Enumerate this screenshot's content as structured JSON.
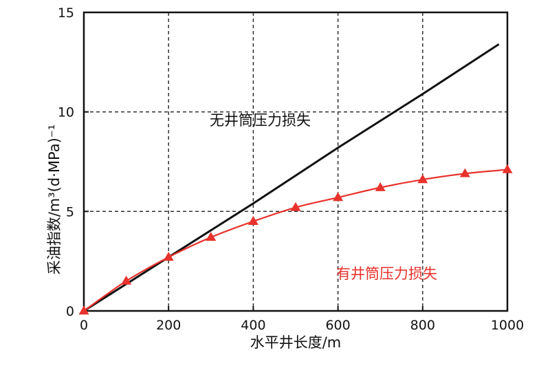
{
  "chart_data": {
    "type": "line",
    "xlabel": "水平井长度/m",
    "ylabel": "采油指数/m³(d·MPa)⁻¹",
    "xlim": [
      0,
      1000
    ],
    "ylim": [
      0,
      15
    ],
    "x_ticks": [
      "0",
      "200",
      "400",
      "600",
      "800",
      "1000"
    ],
    "y_ticks": [
      "0",
      "5",
      "10",
      "15"
    ],
    "grid": true,
    "annotations": [
      {
        "text": "无井筒压力损失",
        "color": "#111111"
      },
      {
        "text": "有井筒压力损失",
        "color": "#e8322c"
      }
    ],
    "series": [
      {
        "color": "#111111",
        "marker": "none",
        "x": [
          0,
          200,
          400,
          600,
          800,
          980
        ],
        "y": [
          0,
          2.7,
          5.4,
          8.2,
          10.9,
          13.4
        ]
      },
      {
        "color": "#e8322c",
        "marker": "triangle",
        "x": [
          0,
          100,
          200,
          300,
          400,
          500,
          600,
          700,
          800,
          900,
          1000
        ],
        "y": [
          0,
          1.5,
          2.7,
          3.7,
          4.5,
          5.2,
          5.7,
          6.2,
          6.6,
          6.9,
          7.1
        ]
      }
    ]
  }
}
